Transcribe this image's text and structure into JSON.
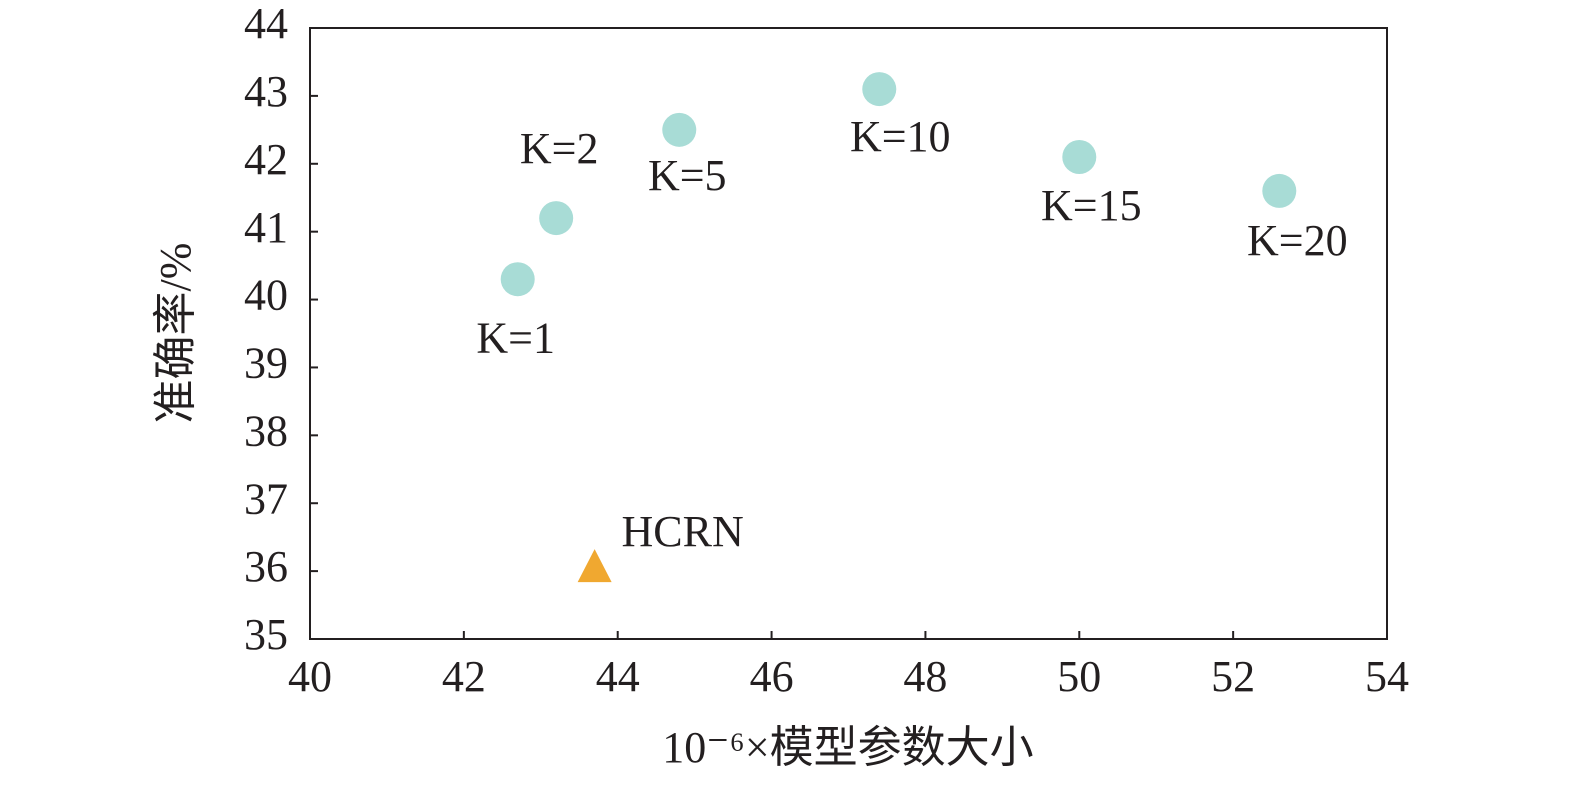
{
  "chart_data": {
    "type": "scatter",
    "x_label": "10⁻⁶×模型参数大小",
    "y_label": "准确率/%",
    "xlim": [
      40,
      54
    ],
    "xticks": [
      40,
      42,
      44,
      46,
      48,
      50,
      52,
      54
    ],
    "ylim": [
      35,
      44
    ],
    "yticks": [
      35,
      36,
      37,
      38,
      39,
      40,
      41,
      42,
      43,
      44
    ],
    "series": [
      {
        "marker": "circle",
        "color": "#a8dcd6",
        "x": [
          42.7,
          43.2,
          44.8,
          47.4,
          50.0,
          52.6
        ],
        "values": [
          40.3,
          41.2,
          42.5,
          43.1,
          42.1,
          41.6
        ],
        "point_labels": [
          "K=1",
          "K=2",
          "K=5",
          "K=10",
          "K=15",
          "K=20"
        ]
      },
      {
        "marker": "triangle",
        "color": "#f0a830",
        "x": [
          43.7
        ],
        "values": [
          36.0
        ],
        "point_labels": [
          "HCRN"
        ]
      }
    ]
  }
}
